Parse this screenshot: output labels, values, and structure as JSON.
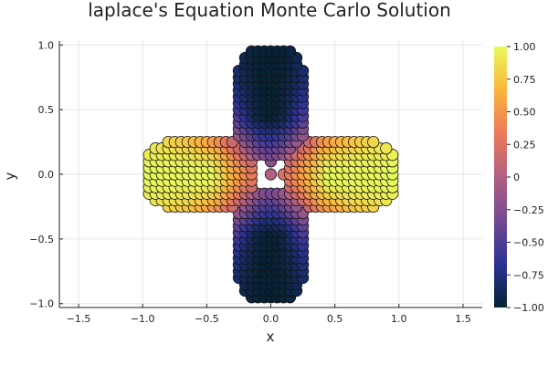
{
  "chart_data": {
    "type": "scatter",
    "title": "laplace's Equation Monte Carlo Solution",
    "xlabel": "x",
    "ylabel": "y",
    "xlim": [
      -1.65,
      1.65
    ],
    "ylim": [
      -1.03,
      1.03
    ],
    "xticks": [
      -1.5,
      -1.0,
      -0.5,
      0.0,
      0.5,
      1.0,
      1.5
    ],
    "xtick_labels": [
      "−1.5",
      "−1.0",
      "−0.5",
      "0.0",
      "0.5",
      "1.0",
      "1.5"
    ],
    "yticks": [
      -1.0,
      -0.5,
      0.0,
      0.5,
      1.0
    ],
    "ytick_labels": [
      "−1.0",
      "−0.5",
      "0.0",
      "0.5",
      "1.0"
    ],
    "grid": true,
    "legend": "none",
    "grid_step": 0.05,
    "domain_description_levels": {
      "petal_center": 0.55,
      "petal_half_length": 0.45,
      "petal_half_width": 0.27
    },
    "value_function": "cos(2*atan2(y,x)) * min(1, r/0.45)",
    "colorbar": {
      "colormap": "thermal",
      "clim": [
        -1.0,
        1.0
      ],
      "ticks": [
        -1.0,
        -0.75,
        -0.5,
        -0.25,
        0,
        0.25,
        0.5,
        0.75,
        1.0
      ],
      "tick_labels": [
        "−1.00",
        "−0.75",
        "−0.50",
        "−0.25",
        "0",
        "0.25",
        "0.50",
        "0.75",
        "1.00"
      ],
      "colors": [
        "#042333",
        "#2c3395",
        "#744992",
        "#b15f82",
        "#eb7958",
        "#fbb43d",
        "#e8fa5b"
      ]
    }
  }
}
